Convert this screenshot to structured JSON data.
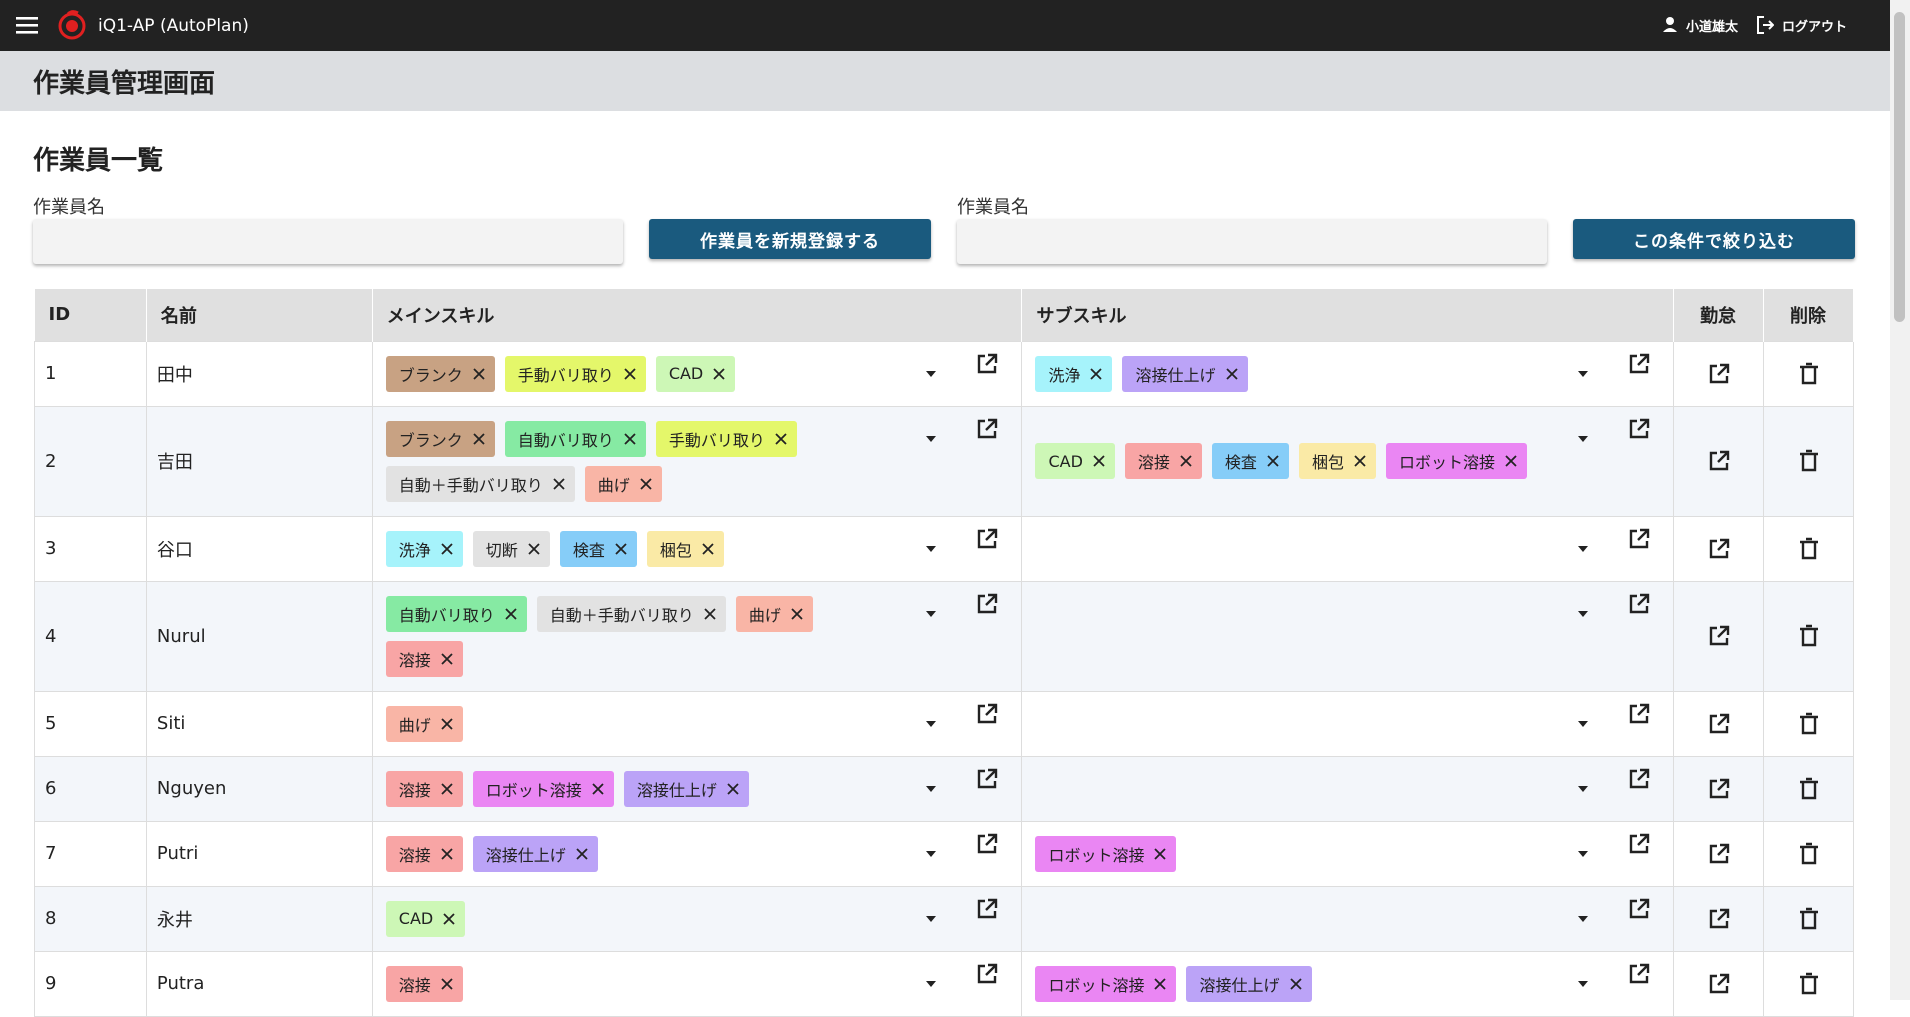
{
  "header": {
    "app_title": "iQ1-AP (AutoPlan)",
    "user": "小道雄太",
    "logout": "ログアウト"
  },
  "page_title": "作業員管理画面",
  "section_title": "作業員一覧",
  "filters": {
    "left_label": "作業員名",
    "register_button": "作業員を新規登録する",
    "right_label": "作業員名",
    "filter_button": "この条件で絞り込む"
  },
  "table": {
    "columns": [
      "ID",
      "名前",
      "メインスキル",
      "サブスキル",
      "勤怠",
      "削除"
    ],
    "rows": [
      {
        "id": 1,
        "name": "田中",
        "main": [
          {
            "label": "ブランク",
            "color": "#c8a283"
          },
          {
            "label": "手動バリ取り",
            "color": "#e4f76a"
          },
          {
            "label": "CAD",
            "color": "#cdf7b6"
          }
        ],
        "sub": [
          {
            "label": "洗浄",
            "color": "#a6f3fb"
          },
          {
            "label": "溶接仕上げ",
            "color": "#bba3f7"
          }
        ]
      },
      {
        "id": 2,
        "name": "吉田",
        "main": [
          {
            "label": "ブランク",
            "color": "#c8a283"
          },
          {
            "label": "自動バリ取り",
            "color": "#86eaa3"
          },
          {
            "label": "手動バリ取り",
            "color": "#e4f76a"
          },
          {
            "label": "自動＋手動バリ取り",
            "color": "#e2e2e2"
          },
          {
            "label": "曲げ",
            "color": "#f9b5a6"
          }
        ],
        "sub": [
          {
            "label": "CAD",
            "color": "#cdf7b6"
          },
          {
            "label": "溶接",
            "color": "#f8a5a5"
          },
          {
            "label": "検査",
            "color": "#86cdf8"
          },
          {
            "label": "梱包",
            "color": "#faeaa6"
          },
          {
            "label": "ロボット溶接",
            "color": "#ea86f3"
          }
        ]
      },
      {
        "id": 3,
        "name": "谷口",
        "main": [
          {
            "label": "洗浄",
            "color": "#a6f3fb"
          },
          {
            "label": "切断",
            "color": "#e2e2e2"
          },
          {
            "label": "検査",
            "color": "#86cdf8"
          },
          {
            "label": "梱包",
            "color": "#faeaa6"
          }
        ],
        "sub": []
      },
      {
        "id": 4,
        "name": "Nurul",
        "main": [
          {
            "label": "自動バリ取り",
            "color": "#86eaa3"
          },
          {
            "label": "自動＋手動バリ取り",
            "color": "#e2e2e2"
          },
          {
            "label": "曲げ",
            "color": "#f9b5a6"
          },
          {
            "label": "溶接",
            "color": "#f8a5a5"
          }
        ],
        "sub": []
      },
      {
        "id": 5,
        "name": "Siti",
        "main": [
          {
            "label": "曲げ",
            "color": "#f9b5a6"
          }
        ],
        "sub": []
      },
      {
        "id": 6,
        "name": "Nguyen",
        "main": [
          {
            "label": "溶接",
            "color": "#f8a5a5"
          },
          {
            "label": "ロボット溶接",
            "color": "#ea86f3"
          },
          {
            "label": "溶接仕上げ",
            "color": "#bba3f7"
          }
        ],
        "sub": []
      },
      {
        "id": 7,
        "name": "Putri",
        "main": [
          {
            "label": "溶接",
            "color": "#f8a5a5"
          },
          {
            "label": "溶接仕上げ",
            "color": "#bba3f7"
          }
        ],
        "sub": [
          {
            "label": "ロボット溶接",
            "color": "#ea86f3"
          }
        ]
      },
      {
        "id": 8,
        "name": "永井",
        "main": [
          {
            "label": "CAD",
            "color": "#cdf7b6"
          }
        ],
        "sub": []
      },
      {
        "id": 9,
        "name": "Putra",
        "main": [
          {
            "label": "溶接",
            "color": "#f8a5a5"
          }
        ],
        "sub": [
          {
            "label": "ロボット溶接",
            "color": "#ea86f3"
          },
          {
            "label": "溶接仕上げ",
            "color": "#bba3f7"
          }
        ]
      }
    ]
  }
}
